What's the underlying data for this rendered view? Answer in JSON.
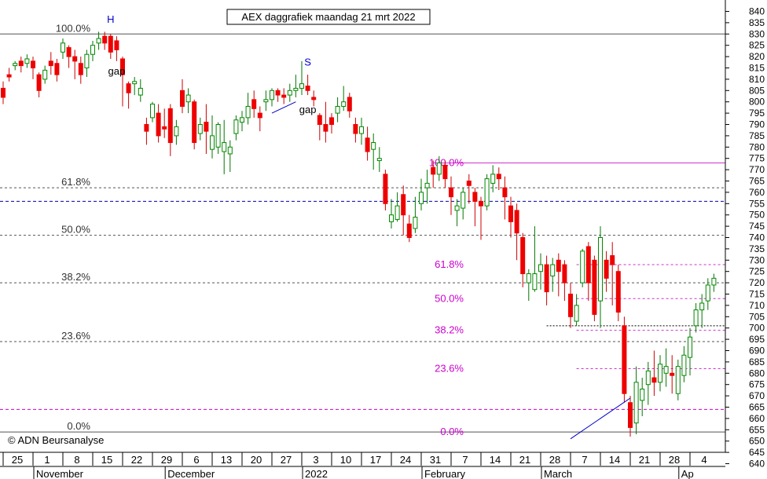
{
  "chart_data": {
    "type": "candlestick",
    "title": "AEX daggrafiek maandag 21 mrt 2022",
    "credit": "© ADN Beursanalyse",
    "ylim": [
      640,
      840
    ],
    "y_ticks": [
      640,
      645,
      650,
      655,
      660,
      665,
      670,
      675,
      680,
      685,
      690,
      695,
      700,
      705,
      710,
      715,
      720,
      725,
      730,
      735,
      740,
      745,
      750,
      755,
      760,
      765,
      770,
      775,
      780,
      785,
      790,
      795,
      800,
      805,
      810,
      815,
      820,
      825,
      830,
      835,
      840
    ],
    "x_ticks": [
      {
        "label": "25",
        "i": 0
      },
      {
        "label": "1",
        "i": 5
      },
      {
        "label": "8",
        "i": 10
      },
      {
        "label": "15",
        "i": 15
      },
      {
        "label": "22",
        "i": 20
      },
      {
        "label": "29",
        "i": 25
      },
      {
        "label": "6",
        "i": 30
      },
      {
        "label": "13",
        "i": 35
      },
      {
        "label": "20",
        "i": 40
      },
      {
        "label": "27",
        "i": 45
      },
      {
        "label": "3",
        "i": 50
      },
      {
        "label": "10",
        "i": 55
      },
      {
        "label": "17",
        "i": 60
      },
      {
        "label": "24",
        "i": 65
      },
      {
        "label": "31",
        "i": 70
      },
      {
        "label": "7",
        "i": 75
      },
      {
        "label": "14",
        "i": 80
      },
      {
        "label": "21",
        "i": 85
      },
      {
        "label": "28",
        "i": 90
      },
      {
        "label": "7",
        "i": 95
      },
      {
        "label": "14",
        "i": 100
      },
      {
        "label": "21",
        "i": 105
      },
      {
        "label": "28",
        "i": 110
      },
      {
        "label": "4",
        "i": 115
      }
    ],
    "months": [
      {
        "label": "November",
        "i": 5
      },
      {
        "label": "December",
        "i": 27
      },
      {
        "label": "2022",
        "i": 50
      },
      {
        "label": "February",
        "i": 70
      },
      {
        "label": "March",
        "i": 90
      },
      {
        "label": "Ap",
        "i": 113
      }
    ],
    "annotations": [
      {
        "text": "H",
        "i": 18,
        "y": 835,
        "color": "#0000cc"
      },
      {
        "text": "S",
        "i": 51,
        "y": 816,
        "color": "#0000cc"
      },
      {
        "text": "gap",
        "i": 19,
        "y": 812,
        "color": "#000000"
      },
      {
        "text": "gap",
        "i": 51,
        "y": 795,
        "color": "#000000"
      }
    ],
    "fib_left": [
      {
        "label": "100.0%",
        "value": 830
      },
      {
        "label": "61.8%",
        "value": 762
      },
      {
        "label": "50.0%",
        "value": 741
      },
      {
        "label": "38.2%",
        "value": 720
      },
      {
        "label": "23.6%",
        "value": 694
      },
      {
        "label": "0.0%",
        "value": 654
      }
    ],
    "fib_right": [
      {
        "label": "100.0%",
        "value": 773
      },
      {
        "label": "61.8%",
        "value": 728
      },
      {
        "label": "50.0%",
        "value": 713
      },
      {
        "label": "38.2%",
        "value": 699
      },
      {
        "label": "23.6%",
        "value": 682
      },
      {
        "label": "0.0%",
        "value": 654
      }
    ],
    "levels": [
      {
        "value": 756,
        "color": "#0000aa",
        "style": "blue-dash"
      },
      {
        "value": 664,
        "color": "#cc00cc",
        "style": "magenta-dash"
      },
      {
        "value": 701,
        "color": "#000000",
        "style": "black-dot-short"
      }
    ],
    "trendlines": [
      {
        "from": [
          95,
          651
        ],
        "to": [
          105,
          669
        ]
      },
      {
        "from": [
          45,
          795
        ],
        "to": [
          49,
          800
        ]
      }
    ],
    "candles": [
      [
        806,
        802,
        809,
        799
      ],
      [
        812,
        811,
        815,
        809
      ],
      [
        816,
        817,
        818,
        814
      ],
      [
        818,
        816,
        820,
        813
      ],
      [
        817,
        819,
        821,
        815
      ],
      [
        818,
        815,
        820,
        810
      ],
      [
        812,
        805,
        813,
        802
      ],
      [
        810,
        814,
        816,
        808
      ],
      [
        818,
        816,
        822,
        812
      ],
      [
        817,
        812,
        819,
        809
      ],
      [
        822,
        826,
        828,
        819
      ],
      [
        824,
        820,
        825,
        815
      ],
      [
        820,
        818,
        823,
        810
      ],
      [
        817,
        812,
        820,
        808
      ],
      [
        815,
        821,
        823,
        811
      ],
      [
        821,
        825,
        827,
        818
      ],
      [
        826,
        828,
        831,
        823
      ],
      [
        829,
        826,
        831,
        823
      ],
      [
        829,
        822,
        830,
        819
      ],
      [
        827,
        823,
        829,
        818
      ],
      [
        819,
        812,
        820,
        798
      ],
      [
        808,
        804,
        809,
        797
      ],
      [
        808,
        809,
        811,
        803
      ],
      [
        803,
        806,
        810,
        800
      ],
      [
        790,
        787,
        793,
        781
      ],
      [
        793,
        799,
        800,
        791
      ],
      [
        795,
        785,
        799,
        782
      ],
      [
        789,
        788,
        797,
        784
      ],
      [
        797,
        782,
        799,
        776
      ],
      [
        785,
        789,
        792,
        781
      ],
      [
        805,
        798,
        810,
        795
      ],
      [
        800,
        803,
        806,
        795
      ],
      [
        800,
        782,
        801,
        779
      ],
      [
        786,
        790,
        793,
        783
      ],
      [
        791,
        787,
        799,
        777
      ],
      [
        779,
        785,
        794,
        775
      ],
      [
        780,
        790,
        791,
        777
      ],
      [
        778,
        782,
        792,
        768
      ],
      [
        777,
        780,
        783,
        769
      ],
      [
        786,
        792,
        794,
        783
      ],
      [
        791,
        793,
        796,
        787
      ],
      [
        793,
        798,
        804,
        790
      ],
      [
        801,
        797,
        805,
        793
      ],
      [
        795,
        793,
        798,
        787
      ],
      [
        800,
        801,
        805,
        796
      ],
      [
        801,
        805,
        806,
        798
      ],
      [
        805,
        803,
        806,
        800
      ],
      [
        803,
        802,
        806,
        799
      ],
      [
        803,
        805,
        808,
        800
      ],
      [
        805,
        806,
        812,
        802
      ],
      [
        806,
        808,
        818,
        803
      ],
      [
        807,
        805,
        812,
        803
      ],
      [
        802,
        801,
        805,
        798
      ],
      [
        794,
        790,
        795,
        783
      ],
      [
        790,
        787,
        800,
        782
      ],
      [
        793,
        790,
        795,
        786
      ],
      [
        795,
        798,
        802,
        791
      ],
      [
        798,
        800,
        807,
        796
      ],
      [
        802,
        796,
        804,
        793
      ],
      [
        790,
        786,
        793,
        782
      ],
      [
        786,
        789,
        793,
        781
      ],
      [
        784,
        778,
        789,
        774
      ],
      [
        779,
        782,
        786,
        770
      ],
      [
        774,
        775,
        780,
        769
      ],
      [
        768,
        755,
        770,
        752
      ],
      [
        747,
        750,
        757,
        744
      ],
      [
        748,
        754,
        760,
        747
      ],
      [
        759,
        750,
        763,
        741
      ],
      [
        746,
        740,
        750,
        738
      ],
      [
        744,
        749,
        758,
        742
      ],
      [
        755,
        760,
        766,
        752
      ],
      [
        762,
        764,
        770,
        755
      ],
      [
        771,
        768,
        774,
        762
      ],
      [
        768,
        773,
        776,
        765
      ],
      [
        772,
        766,
        774,
        762
      ],
      [
        762,
        758,
        767,
        750
      ],
      [
        752,
        754,
        757,
        745
      ],
      [
        753,
        760,
        762,
        748
      ],
      [
        765,
        763,
        768,
        755
      ],
      [
        760,
        756,
        762,
        745
      ],
      [
        756,
        754,
        758,
        739
      ],
      [
        754,
        766,
        768,
        752
      ],
      [
        764,
        768,
        772,
        760
      ],
      [
        768,
        766,
        771,
        761
      ],
      [
        762,
        758,
        767,
        748
      ],
      [
        754,
        747,
        758,
        740
      ],
      [
        752,
        742,
        755,
        730
      ],
      [
        740,
        724,
        742,
        718
      ],
      [
        720,
        724,
        726,
        712
      ],
      [
        717,
        724,
        745,
        716
      ],
      [
        725,
        728,
        733,
        717
      ],
      [
        728,
        716,
        732,
        710
      ],
      [
        723,
        728,
        731,
        716
      ],
      [
        730,
        725,
        733,
        714
      ],
      [
        728,
        720,
        730,
        712
      ],
      [
        715,
        705,
        720,
        700
      ],
      [
        703,
        710,
        715,
        701
      ],
      [
        720,
        734,
        735,
        718
      ],
      [
        736,
        720,
        738,
        712
      ],
      [
        730,
        706,
        732,
        703
      ],
      [
        712,
        740,
        745,
        700
      ],
      [
        730,
        722,
        734,
        716
      ],
      [
        732,
        728,
        738,
        710
      ],
      [
        725,
        707,
        728,
        703
      ],
      [
        701,
        671,
        705,
        667
      ],
      [
        667,
        656,
        670,
        652
      ],
      [
        658,
        676,
        683,
        653
      ],
      [
        668,
        673,
        678,
        661
      ],
      [
        675,
        681,
        685,
        666
      ],
      [
        678,
        676,
        690,
        670
      ],
      [
        676,
        684,
        688,
        672
      ],
      [
        680,
        683,
        691,
        674
      ],
      [
        680,
        679,
        688,
        671
      ],
      [
        671,
        683,
        686,
        668
      ],
      [
        679,
        688,
        692,
        676
      ],
      [
        687,
        696,
        700,
        679
      ],
      [
        701,
        708,
        711,
        698
      ],
      [
        708,
        711,
        715,
        700
      ],
      [
        712,
        719,
        722,
        708
      ],
      [
        719,
        722,
        724,
        716
      ]
    ]
  }
}
